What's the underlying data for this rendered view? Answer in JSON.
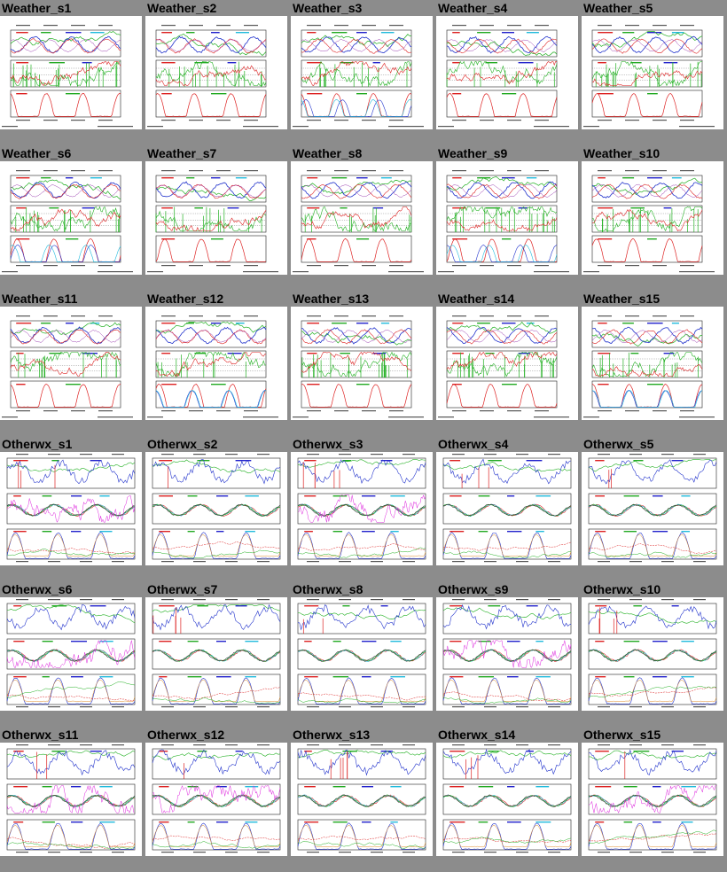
{
  "colors": {
    "page_background": "#8c8c8c",
    "thumbnail_background": "#ffffff",
    "trace_green": "#22b022",
    "trace_blue": "#2233cc",
    "trace_red": "#dd2222",
    "trace_magenta": "#dd22dd",
    "trace_cyan": "#22bbdd",
    "trace_orange": "#dd8822"
  },
  "panel_kinds": [
    "Weather",
    "Otherwx"
  ],
  "panels": [
    {
      "id": "w1",
      "label": "Weather_s1",
      "kind": "Weather"
    },
    {
      "id": "w2",
      "label": "Weather_s2",
      "kind": "Weather"
    },
    {
      "id": "w3",
      "label": "Weather_s3",
      "kind": "Weather"
    },
    {
      "id": "w4",
      "label": "Weather_s4",
      "kind": "Weather"
    },
    {
      "id": "w5",
      "label": "Weather_s5",
      "kind": "Weather"
    },
    {
      "id": "w6",
      "label": "Weather_s6",
      "kind": "Weather"
    },
    {
      "id": "w7",
      "label": "Weather_s7",
      "kind": "Weather"
    },
    {
      "id": "w8",
      "label": "Weather_s8",
      "kind": "Weather"
    },
    {
      "id": "w9",
      "label": "Weather_s9",
      "kind": "Weather"
    },
    {
      "id": "w10",
      "label": "Weather_s10",
      "kind": "Weather"
    },
    {
      "id": "w11",
      "label": "Weather_s11",
      "kind": "Weather"
    },
    {
      "id": "w12",
      "label": "Weather_s12",
      "kind": "Weather"
    },
    {
      "id": "w13",
      "label": "Weather_s13",
      "kind": "Weather"
    },
    {
      "id": "w14",
      "label": "Weather_s14",
      "kind": "Weather"
    },
    {
      "id": "w15",
      "label": "Weather_s15",
      "kind": "Weather"
    },
    {
      "id": "o1",
      "label": "Otherwx_s1",
      "kind": "Otherwx"
    },
    {
      "id": "o2",
      "label": "Otherwx_s2",
      "kind": "Otherwx"
    },
    {
      "id": "o3",
      "label": "Otherwx_s3",
      "kind": "Otherwx"
    },
    {
      "id": "o4",
      "label": "Otherwx_s4",
      "kind": "Otherwx"
    },
    {
      "id": "o5",
      "label": "Otherwx_s5",
      "kind": "Otherwx"
    },
    {
      "id": "o6",
      "label": "Otherwx_s6",
      "kind": "Otherwx"
    },
    {
      "id": "o7",
      "label": "Otherwx_s7",
      "kind": "Otherwx"
    },
    {
      "id": "o8",
      "label": "Otherwx_s8",
      "kind": "Otherwx"
    },
    {
      "id": "o9",
      "label": "Otherwx_s9",
      "kind": "Otherwx"
    },
    {
      "id": "o10",
      "label": "Otherwx_s10",
      "kind": "Otherwx"
    },
    {
      "id": "o11",
      "label": "Otherwx_s11",
      "kind": "Otherwx"
    },
    {
      "id": "o12",
      "label": "Otherwx_s12",
      "kind": "Otherwx"
    },
    {
      "id": "o13",
      "label": "Otherwx_s13",
      "kind": "Otherwx"
    },
    {
      "id": "o14",
      "label": "Otherwx_s14",
      "kind": "Otherwx"
    },
    {
      "id": "o15",
      "label": "Otherwx_s15",
      "kind": "Otherwx"
    }
  ]
}
